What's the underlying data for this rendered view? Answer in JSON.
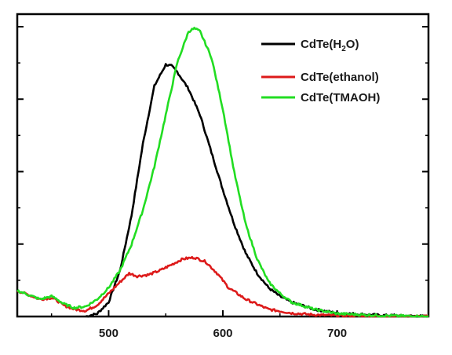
{
  "chart_data": {
    "type": "line",
    "title": "",
    "xlabel": "",
    "ylabel": "",
    "xlim": [
      420,
      780
    ],
    "ylim": [
      0,
      1.05
    ],
    "x_ticks": [
      500,
      600,
      700
    ],
    "x_tick_labels": [
      "500",
      "600",
      "700"
    ],
    "y_tick_count": 8,
    "grid": false,
    "legend": {
      "placement": "top-right",
      "entries": [
        {
          "series": "CdTe(H2O)",
          "base": "CdTe(H",
          "sub": "2",
          "tail": "O)"
        },
        {
          "series": "CdTe(ethanol)",
          "base": "CdTe(ethanol)",
          "sub": "",
          "tail": ""
        },
        {
          "series": "CdTe(TMAOH)",
          "base": "CdTe(TMAOH)",
          "sub": "",
          "tail": ""
        }
      ]
    },
    "series": [
      {
        "name": "CdTe(H2O)",
        "color": "#000000",
        "x": [
          480,
          490,
          500,
          510,
          520,
          530,
          540,
          550,
          555,
          560,
          570,
          580,
          590,
          600,
          610,
          620,
          630,
          640,
          650,
          660,
          680,
          700,
          740,
          780
        ],
        "y": [
          0.0,
          0.01,
          0.05,
          0.16,
          0.35,
          0.6,
          0.8,
          0.875,
          0.87,
          0.85,
          0.79,
          0.7,
          0.57,
          0.44,
          0.32,
          0.22,
          0.15,
          0.1,
          0.07,
          0.05,
          0.025,
          0.012,
          0.004,
          0.0
        ]
      },
      {
        "name": "CdTe(ethanol)",
        "color": "#dd1a1a",
        "x": [
          420,
          440,
          450,
          455,
          460,
          470,
          480,
          490,
          500,
          510,
          518,
          525,
          535,
          545,
          555,
          565,
          575,
          585,
          595,
          605,
          620,
          640,
          660,
          680,
          700,
          740,
          780
        ],
        "y": [
          0.09,
          0.06,
          0.065,
          0.055,
          0.04,
          0.025,
          0.02,
          0.04,
          0.08,
          0.12,
          0.15,
          0.14,
          0.145,
          0.16,
          0.18,
          0.2,
          0.205,
          0.19,
          0.15,
          0.1,
          0.06,
          0.025,
          0.012,
          0.006,
          0.003,
          0.0,
          0.0
        ]
      },
      {
        "name": "CdTe(TMAOH)",
        "color": "#22dd22",
        "x": [
          420,
          440,
          450,
          455,
          460,
          470,
          480,
          490,
          500,
          510,
          520,
          530,
          540,
          550,
          560,
          570,
          575,
          580,
          590,
          600,
          610,
          620,
          630,
          640,
          650,
          660,
          680,
          700,
          740,
          780
        ],
        "y": [
          0.09,
          0.06,
          0.07,
          0.06,
          0.045,
          0.03,
          0.035,
          0.06,
          0.1,
          0.16,
          0.25,
          0.37,
          0.52,
          0.7,
          0.88,
          0.99,
          1.0,
          0.99,
          0.9,
          0.72,
          0.5,
          0.32,
          0.2,
          0.12,
          0.08,
          0.05,
          0.025,
          0.01,
          0.003,
          0.0
        ]
      }
    ]
  }
}
